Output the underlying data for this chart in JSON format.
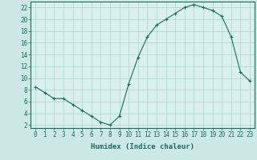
{
  "x": [
    0,
    1,
    2,
    3,
    4,
    5,
    6,
    7,
    8,
    9,
    10,
    11,
    12,
    13,
    14,
    15,
    16,
    17,
    18,
    19,
    20,
    21,
    22,
    23
  ],
  "y": [
    8.5,
    7.5,
    6.5,
    6.5,
    5.5,
    4.5,
    3.5,
    2.5,
    2.0,
    3.5,
    9.0,
    13.5,
    17.0,
    19.0,
    20.0,
    21.0,
    22.0,
    22.5,
    22.0,
    21.5,
    20.5,
    17.0,
    11.0,
    9.5
  ],
  "line_color": "#1a6b5a",
  "marker": "+",
  "marker_size": 3,
  "marker_linewidth": 0.8,
  "line_width": 0.8,
  "bg_color": "#cce8e4",
  "plot_bg_color": "#daf0ed",
  "grid_color": "#aad4cf",
  "grid_linewidth": 0.5,
  "xlabel": "Humidex (Indice chaleur)",
  "ylim": [
    1.5,
    23.0
  ],
  "xlim": [
    -0.5,
    23.5
  ],
  "yticks": [
    2,
    4,
    6,
    8,
    10,
    12,
    14,
    16,
    18,
    20,
    22
  ],
  "xticks": [
    0,
    1,
    2,
    3,
    4,
    5,
    6,
    7,
    8,
    9,
    10,
    11,
    12,
    13,
    14,
    15,
    16,
    17,
    18,
    19,
    20,
    21,
    22,
    23
  ],
  "tick_color": "#1a6b5a",
  "label_fontsize": 6.5,
  "tick_fontsize": 5.5,
  "spine_color": "#1a6b5a"
}
